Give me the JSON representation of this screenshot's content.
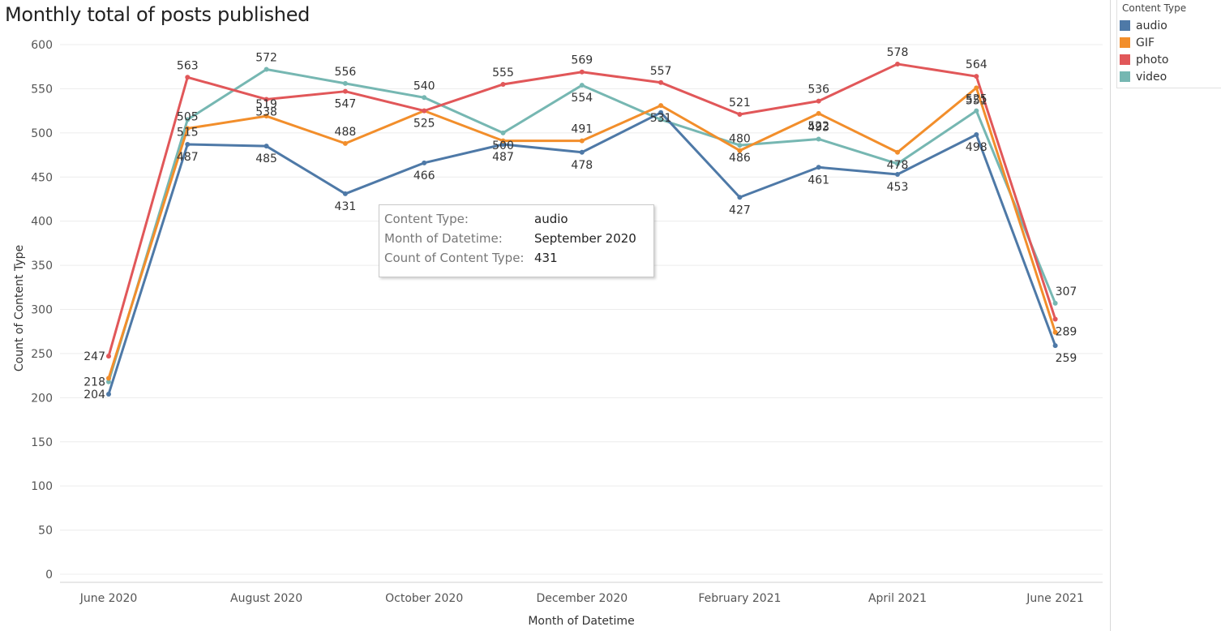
{
  "chart_data": {
    "type": "line",
    "title": "Monthly total of posts published",
    "xlabel": "Month of Datetime",
    "ylabel": "Count of Content Type",
    "ylim": [
      0,
      600
    ],
    "yticks": [
      0,
      50,
      100,
      150,
      200,
      250,
      300,
      350,
      400,
      450,
      500,
      550,
      600
    ],
    "x": [
      "June 2020",
      "July 2020",
      "August 2020",
      "September 2020",
      "October 2020",
      "November 2020",
      "December 2020",
      "January 2021",
      "February 2021",
      "March 2021",
      "April 2021",
      "May 2021",
      "June 2021"
    ],
    "xtick_labels": [
      "June 2020",
      "August 2020",
      "October 2020",
      "December 2020",
      "February 2021",
      "April 2021",
      "June 2021"
    ],
    "grid": true,
    "legend_title": "Content Type",
    "legend_position": "top-right",
    "series": [
      {
        "name": "audio",
        "color": "#4e79a7",
        "values": [
          204,
          487,
          485,
          431,
          466,
          487,
          478,
          523,
          427,
          461,
          453,
          498,
          259
        ],
        "labels": [
          "204",
          "487",
          "485",
          "431",
          "466",
          "487",
          "478",
          null,
          "427",
          "461",
          "453",
          "498",
          "259"
        ]
      },
      {
        "name": "GIF",
        "color": "#f28e2b",
        "values": [
          222,
          505,
          519,
          488,
          525,
          491,
          491,
          531,
          480,
          522,
          478,
          551,
          274
        ],
        "labels": [
          null,
          "505",
          "519",
          "488",
          "525",
          null,
          "491",
          "531",
          "480",
          "522",
          "478",
          "551",
          null
        ]
      },
      {
        "name": "photo",
        "color": "#e15759",
        "values": [
          247,
          563,
          538,
          547,
          525,
          555,
          569,
          557,
          521,
          536,
          578,
          564,
          289
        ],
        "labels": [
          "247",
          "563",
          "538",
          "547",
          null,
          "555",
          "569",
          "557",
          "521",
          "536",
          "578",
          "564",
          "289"
        ]
      },
      {
        "name": "video",
        "color": "#76b7b2",
        "values": [
          218,
          515,
          572,
          556,
          540,
          500,
          554,
          515,
          486,
          493,
          465,
          525,
          307
        ],
        "labels": [
          "218",
          "515",
          "572",
          "556",
          "540",
          "500",
          "554",
          null,
          "486",
          "493",
          null,
          "525",
          "307"
        ]
      }
    ],
    "tooltip": {
      "rows": [
        {
          "key": "Content Type:",
          "value": "audio"
        },
        {
          "key": "Month of Datetime:",
          "value": "September 2020"
        },
        {
          "key": "Count of Content Type:",
          "value": "431"
        }
      ]
    }
  }
}
